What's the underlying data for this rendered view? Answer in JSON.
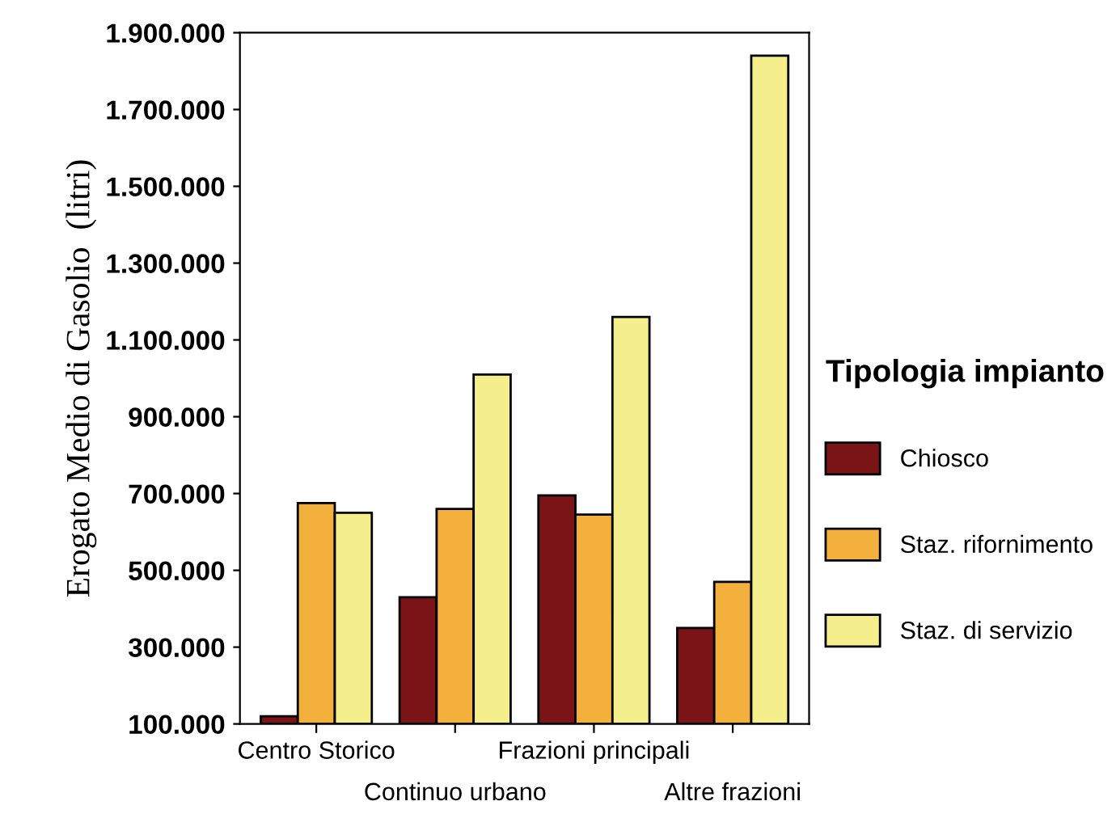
{
  "chart_data": {
    "type": "bar",
    "ylabel": "Erogato Medio di Gasolio  (litri)",
    "legend_title": "Tipologia impianto",
    "categories": [
      "Centro Storico",
      "Continuo urbano",
      "Frazioni principali",
      "Altre frazioni"
    ],
    "series": [
      {
        "name": "Chiosco",
        "color": "#7b1416",
        "values": [
          120000,
          430000,
          695000,
          350000
        ]
      },
      {
        "name": "Staz. rifornimento",
        "color": "#f4b03c",
        "values": [
          675000,
          660000,
          645000,
          470000
        ]
      },
      {
        "name": "Staz. di servizio",
        "color": "#f4ef8c",
        "values": [
          650000,
          1010000,
          1160000,
          1840000
        ]
      }
    ],
    "ylim": [
      100000,
      1900000
    ],
    "yticks": [
      {
        "value": 100000,
        "label": "100.000"
      },
      {
        "value": 300000,
        "label": "300.000"
      },
      {
        "value": 500000,
        "label": "500.000"
      },
      {
        "value": 700000,
        "label": "700.000"
      },
      {
        "value": 900000,
        "label": "900.000"
      },
      {
        "value": 1100000,
        "label": "1.100.000"
      },
      {
        "value": 1300000,
        "label": "1.300.000"
      },
      {
        "value": 1500000,
        "label": "1.500.000"
      },
      {
        "value": 1700000,
        "label": "1.700.000"
      },
      {
        "value": 1900000,
        "label": "1.900.000"
      }
    ],
    "grid": false,
    "legend": "right"
  }
}
